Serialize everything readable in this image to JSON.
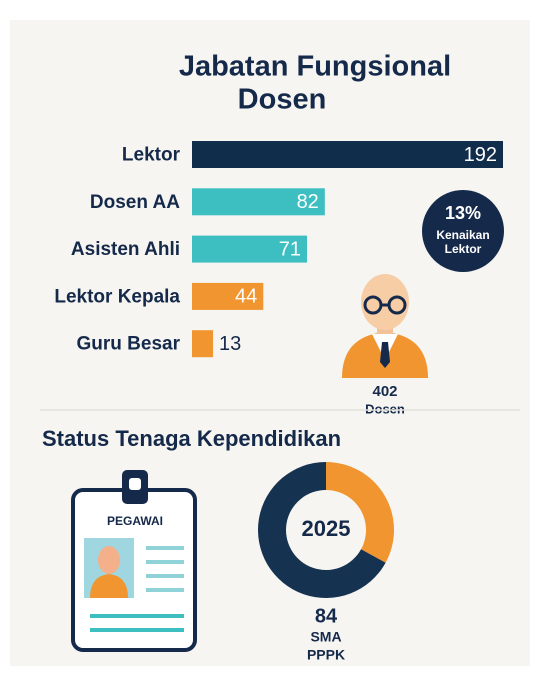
{
  "chart_data": {
    "type": "bar",
    "title": [
      "Jabatan Fungsional",
      "Dosen"
    ],
    "categories": [
      "Lektor",
      "Dosen AA",
      "Asisten Ahli",
      "Lektor Kepala",
      "Guru Besar"
    ],
    "values": [
      192,
      82,
      71,
      44,
      13
    ],
    "colors": [
      "#102d4b",
      "#3dbfc2",
      "#3dbfc2",
      "#f0952f",
      "#f0952f"
    ]
  },
  "badge": {
    "value": "13%",
    "label": [
      "Kenaikan",
      "Lektor"
    ]
  },
  "total": {
    "value": "402",
    "label": "Dosen"
  },
  "status": {
    "title": "Status Tenaga Kependidikan",
    "card_label": "PEGAWAI",
    "donut": {
      "center_label": "2025",
      "segments": [
        {
          "value": 33,
          "color": "#f0952f"
        },
        {
          "value": 67,
          "color": "#153250"
        }
      ]
    },
    "count": "84",
    "lines": [
      "SMA",
      "PPPK"
    ]
  }
}
